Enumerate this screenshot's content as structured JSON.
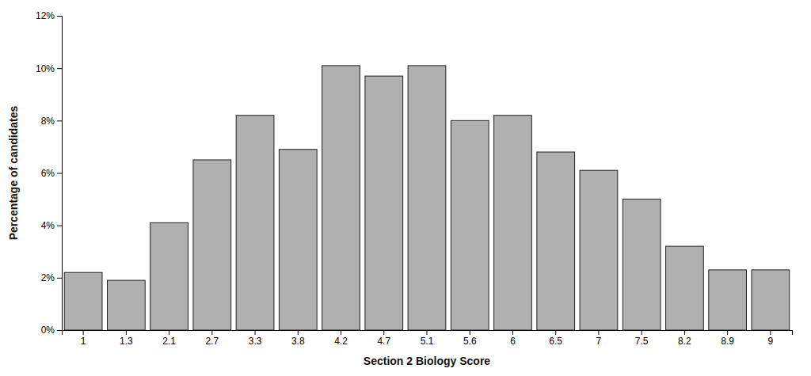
{
  "chart_data": {
    "type": "bar",
    "xlabel": "Section 2 Biology Score",
    "ylabel": "Percentage of candidates",
    "categories": [
      "1",
      "1.3",
      "2.1",
      "2.7",
      "3.3",
      "3.8",
      "4.2",
      "4.7",
      "5.1",
      "5.6",
      "6",
      "6.5",
      "7",
      "7.5",
      "8.2",
      "8.9",
      "9"
    ],
    "values": [
      2.2,
      1.9,
      4.1,
      6.5,
      8.2,
      6.9,
      10.1,
      9.7,
      10.1,
      8.0,
      8.2,
      6.8,
      6.1,
      5.0,
      3.2,
      2.3,
      2.3
    ],
    "color": "#b0b0b0",
    "ylim": [
      0,
      12
    ],
    "yticks": [
      {
        "value": 0,
        "label": "0%"
      },
      {
        "value": 2,
        "label": "2%"
      },
      {
        "value": 4,
        "label": "4%"
      },
      {
        "value": 6,
        "label": "6%"
      },
      {
        "value": 8,
        "label": "8%"
      },
      {
        "value": 10,
        "label": "10%"
      },
      {
        "value": 12,
        "label": "12%"
      }
    ],
    "grid": false
  }
}
